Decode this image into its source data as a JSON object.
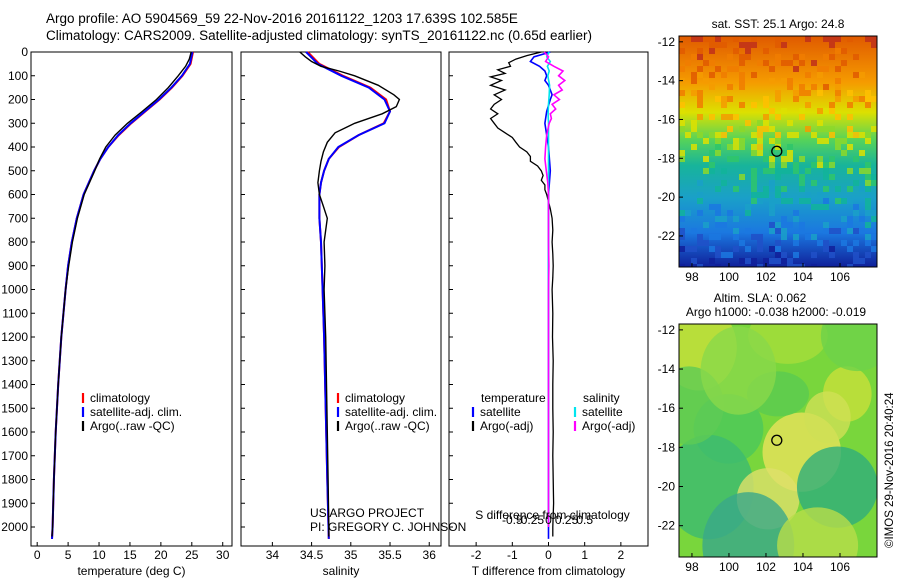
{
  "header": {
    "line1": "Argo profile: AO 5904569_59 22-Nov-2016 20161122_1203 17.639S 102.585E",
    "line2": "Climatology: CARS2009. Satellite-adjusted climatology: synTS_20161122.nc (0.65d earlier)"
  },
  "colors": {
    "climatology": "#ff0000",
    "satellite": "#0000ff",
    "argo": "#000000",
    "sal_satellite": "#00e5ee",
    "sal_argo": "#ff00ff"
  },
  "chart_data": [
    {
      "id": "temperature",
      "type": "line",
      "xlabel": "temperature (deg C)",
      "ylabel": "",
      "xlim": [
        -1,
        31.5
      ],
      "ylim": [
        2080,
        0
      ],
      "xticks": [
        "0",
        "5",
        "10",
        "15",
        "20",
        "25",
        "30"
      ],
      "xtick_values": [
        0,
        5,
        10,
        15,
        20,
        25,
        30
      ],
      "yticks": [
        "0",
        "100",
        "200",
        "300",
        "400",
        "500",
        "600",
        "700",
        "800",
        "900",
        "1000",
        "1100",
        "1200",
        "1300",
        "1400",
        "1500",
        "1600",
        "1700",
        "1800",
        "1900",
        "2000"
      ],
      "ytick_values": [
        0,
        100,
        200,
        300,
        400,
        500,
        600,
        700,
        800,
        900,
        1000,
        1100,
        1200,
        1300,
        1400,
        1500,
        1600,
        1700,
        1800,
        1900,
        2000
      ],
      "legend": [
        "climatology",
        "satellite-adj. clim.",
        "Argo(..raw -QC)"
      ],
      "series": [
        {
          "name": "climatology",
          "depth": [
            0,
            50,
            100,
            150,
            200,
            250,
            300,
            350,
            400,
            450,
            500,
            600,
            700,
            800,
            900,
            1000,
            1200,
            1400,
            1600,
            1800,
            2000,
            2050
          ],
          "values": [
            25.2,
            24.8,
            23.5,
            21.8,
            19.8,
            17.5,
            15.2,
            13.2,
            11.5,
            10.2,
            9.2,
            7.5,
            6.4,
            5.6,
            5.0,
            4.6,
            3.9,
            3.4,
            3.0,
            2.7,
            2.5,
            2.4
          ]
        },
        {
          "name": "satellite-adj. clim.",
          "depth": [
            0,
            50,
            100,
            150,
            200,
            250,
            300,
            350,
            400,
            450,
            500,
            600,
            700,
            800,
            900,
            1000,
            1200,
            1400,
            1600,
            1800,
            2000,
            2050
          ],
          "values": [
            25.1,
            24.7,
            23.4,
            21.7,
            19.7,
            17.4,
            15.1,
            13.1,
            11.5,
            10.2,
            9.2,
            7.5,
            6.4,
            5.6,
            5.0,
            4.6,
            3.9,
            3.4,
            3.0,
            2.7,
            2.5,
            2.4
          ]
        },
        {
          "name": "Argo(..raw -QC)",
          "depth": [
            0,
            30,
            60,
            100,
            150,
            200,
            250,
            300,
            350,
            400,
            450,
            500,
            600,
            700,
            800,
            900,
            1000,
            1200,
            1400,
            1600,
            1800,
            2000,
            2040
          ],
          "values": [
            24.9,
            24.6,
            24.0,
            22.8,
            21.2,
            19.3,
            17.0,
            14.6,
            12.6,
            11.1,
            10.1,
            9.3,
            7.6,
            6.5,
            5.7,
            5.1,
            4.6,
            3.9,
            3.4,
            3.0,
            2.7,
            2.5,
            2.4
          ]
        }
      ]
    },
    {
      "id": "salinity",
      "type": "line",
      "xlabel": "salinity",
      "xlim": [
        33.6,
        36.15
      ],
      "ylim": [
        2080,
        0
      ],
      "xticks": [
        "34",
        "34.5",
        "35",
        "35.5",
        "36"
      ],
      "xtick_values": [
        34,
        34.5,
        35,
        35.5,
        36
      ],
      "legend": [
        "climatology",
        "satellite-adj. clim.",
        "Argo(..raw -QC)"
      ],
      "annotation_lines": [
        "US ARGO PROJECT",
        "PI: GREGORY C. JOHNSON"
      ],
      "series": [
        {
          "name": "climatology",
          "depth": [
            0,
            50,
            100,
            150,
            200,
            250,
            300,
            350,
            400,
            450,
            500,
            550,
            600,
            700,
            800,
            1000,
            1200,
            1500,
            1800,
            2050
          ],
          "values": [
            34.45,
            34.6,
            34.9,
            35.25,
            35.45,
            35.5,
            35.42,
            35.1,
            34.85,
            34.72,
            34.66,
            34.62,
            34.6,
            34.6,
            34.62,
            34.64,
            34.66,
            34.68,
            34.7,
            34.72
          ]
        },
        {
          "name": "satellite-adj. clim.",
          "depth": [
            0,
            50,
            100,
            150,
            200,
            250,
            300,
            350,
            400,
            450,
            500,
            550,
            600,
            700,
            800,
            1000,
            1200,
            1500,
            1800,
            2050
          ],
          "values": [
            34.43,
            34.58,
            34.88,
            35.23,
            35.43,
            35.5,
            35.43,
            35.1,
            34.84,
            34.72,
            34.66,
            34.62,
            34.6,
            34.6,
            34.62,
            34.64,
            34.66,
            34.68,
            34.7,
            34.72
          ]
        },
        {
          "name": "Argo(..raw -QC)",
          "depth": [
            0,
            20,
            40,
            60,
            80,
            100,
            140,
            180,
            200,
            230,
            260,
            300,
            340,
            380,
            420,
            460,
            500,
            550,
            600,
            650,
            700,
            800,
            900,
            1000,
            1200,
            1400,
            1600,
            1800,
            2000,
            2040
          ],
          "values": [
            34.35,
            34.42,
            34.5,
            34.62,
            34.85,
            35.05,
            35.35,
            35.55,
            35.62,
            35.58,
            35.4,
            35.05,
            34.8,
            34.7,
            34.65,
            34.62,
            34.6,
            34.58,
            34.6,
            34.65,
            34.7,
            34.66,
            34.67,
            34.66,
            34.68,
            34.69,
            34.7,
            34.71,
            34.72,
            34.72
          ]
        }
      ]
    },
    {
      "id": "difference",
      "type": "line",
      "xlabel_top": "S difference from climatology",
      "xlabel": "T difference from climatology",
      "xlim": [
        -2.75,
        2.75
      ],
      "ylim": [
        2080,
        0
      ],
      "xticks": [
        "-2",
        "-1",
        "0",
        "1",
        "2"
      ],
      "xtick_values": [
        -2,
        -1,
        0,
        1,
        2
      ],
      "sticks": [
        "-0.5",
        "-0.25",
        "0",
        "0.25",
        "0.5"
      ],
      "stick_values": [
        -0.5,
        -0.25,
        0,
        0.25,
        0.5
      ],
      "legend_t_title": "temperature",
      "legend_s_title": "salinity",
      "legend": [
        "satellite",
        "Argo(-adj)",
        "satellite",
        "Argo(-adj)"
      ],
      "series": [
        {
          "name": "temperature satellite",
          "depth": [
            0,
            20,
            40,
            60,
            80,
            100,
            120,
            140,
            160,
            180,
            200,
            250,
            300,
            400,
            500,
            600,
            800,
            1000,
            1500,
            2000,
            2050
          ],
          "values": [
            0.05,
            -0.4,
            -0.5,
            -0.25,
            -0.1,
            -0.05,
            -0.1,
            0,
            0.05,
            0.1,
            0.05,
            -0.05,
            -0.1,
            0,
            0.05,
            0,
            0,
            0,
            0,
            0,
            0
          ]
        },
        {
          "name": "temperature Argo(-adj)",
          "depth": [
            0,
            15,
            30,
            45,
            60,
            75,
            90,
            105,
            120,
            140,
            160,
            180,
            200,
            220,
            240,
            260,
            280,
            300,
            320,
            340,
            360,
            380,
            400,
            420,
            440,
            460,
            480,
            500,
            520,
            540,
            560,
            580,
            600,
            630,
            660,
            700,
            750,
            800,
            850,
            900,
            950,
            1000,
            1100,
            1200,
            1300,
            1400,
            1500,
            1600,
            1700,
            1800,
            1900,
            2000,
            2040
          ],
          "values": [
            -0.2,
            -0.6,
            -0.9,
            -1.1,
            -1.05,
            -1.4,
            -1.2,
            -1.6,
            -1.3,
            -1.6,
            -1.2,
            -1.5,
            -1.3,
            -1.5,
            -1.6,
            -1.4,
            -1.6,
            -1.5,
            -1.4,
            -1.2,
            -1.0,
            -0.9,
            -0.8,
            -0.6,
            -0.5,
            -0.5,
            -0.3,
            -0.2,
            -0.15,
            -0.2,
            -0.1,
            -0.1,
            -0.05,
            0.0,
            0.05,
            0.1,
            0.12,
            0.1,
            0.12,
            0.13,
            0.12,
            0.1,
            0.12,
            0.11,
            0.13,
            0.12,
            0.12,
            0.13,
            0.12,
            0.13,
            0.14,
            0.12,
            0.12
          ]
        },
        {
          "name": "salinity satellite",
          "depth": [
            0,
            20,
            40,
            60,
            80,
            100,
            140,
            180,
            220,
            260,
            300,
            400,
            500,
            600,
            800,
            1000,
            1500,
            2000
          ],
          "values": [
            0.02,
            -0.05,
            0.05,
            -0.03,
            0.02,
            -0.02,
            0.03,
            0.02,
            0,
            -0.01,
            0,
            0,
            0,
            0,
            0,
            0,
            0,
            0
          ]
        },
        {
          "name": "salinity Argo(-adj)",
          "depth": [
            0,
            20,
            40,
            60,
            80,
            100,
            120,
            140,
            160,
            180,
            200,
            220,
            240,
            260,
            280,
            300,
            350,
            400,
            450,
            500,
            550,
            600,
            700,
            800,
            900,
            1000,
            1200,
            1500,
            1800,
            2000
          ],
          "values": [
            -0.12,
            0,
            -0.08,
            0.15,
            0.4,
            0.28,
            0.45,
            0.28,
            0.38,
            0.15,
            0.3,
            0.1,
            0.2,
            0.05,
            0.08,
            0.02,
            -0.05,
            -0.08,
            -0.1,
            -0.06,
            -0.02,
            0,
            0,
            0,
            0.01,
            0,
            0,
            0,
            0,
            0
          ]
        }
      ]
    },
    {
      "id": "sst_map",
      "type": "heatmap",
      "title": "sat. SST: 25.1  Argo: 24.8",
      "xlim": [
        97.3,
        108
      ],
      "ylim": [
        -23.6,
        -11.7
      ],
      "xticks": [
        "98",
        "100",
        "102",
        "104",
        "106"
      ],
      "xtick_values": [
        98,
        100,
        102,
        104,
        106
      ],
      "yticks": [
        "-12",
        "-14",
        "-16",
        "-18",
        "-20",
        "-22"
      ],
      "ytick_values": [
        -12,
        -14,
        -16,
        -18,
        -20,
        -22
      ],
      "marker": {
        "lon": 102.585,
        "lat": -17.639
      }
    },
    {
      "id": "sla_map",
      "type": "heatmap",
      "title": "Altim. SLA: 0.062",
      "subtitle": "Argo h1000: -0.038 h2000: -0.019",
      "xlim": [
        97.3,
        108
      ],
      "ylim": [
        -23.6,
        -11.7
      ],
      "xticks": [
        "98",
        "100",
        "102",
        "104",
        "106"
      ],
      "xtick_values": [
        98,
        100,
        102,
        104,
        106
      ],
      "yticks": [
        "-12",
        "-14",
        "-16",
        "-18",
        "-20",
        "-22"
      ],
      "ytick_values": [
        -12,
        -14,
        -16,
        -18,
        -20,
        -22
      ],
      "marker": {
        "lon": 102.585,
        "lat": -17.639
      }
    }
  ],
  "footer_stamp": "©IMOS 29-Nov-2016 20:40:24"
}
